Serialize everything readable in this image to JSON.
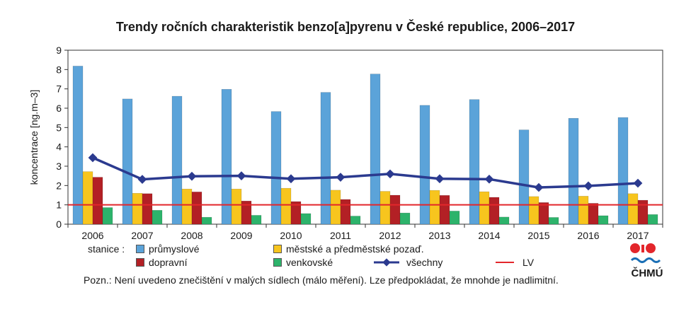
{
  "chart_data": {
    "type": "bar",
    "title": "Trendy ročních charakteristik benzo[a]pyrenu v České republice, 2006–2017",
    "ylabel": "koncentrace [ng.m–3]",
    "ylim": [
      0,
      9
    ],
    "yticks": [
      "0",
      "1",
      "2",
      "3",
      "4",
      "5",
      "6",
      "7",
      "8",
      "9"
    ],
    "categories": [
      "2006",
      "2007",
      "2008",
      "2009",
      "2010",
      "2011",
      "2012",
      "2013",
      "2014",
      "2015",
      "2016",
      "2017"
    ],
    "series": [
      {
        "name": "průmyslové",
        "color": "#5ba3d9",
        "values": [
          8.18,
          6.48,
          6.62,
          6.98,
          5.83,
          6.82,
          7.77,
          6.15,
          6.45,
          4.88,
          5.48,
          5.52
        ]
      },
      {
        "name": "městské a předměstské pozaď.",
        "color": "#f7c51e",
        "values": [
          2.72,
          1.6,
          1.82,
          1.82,
          1.86,
          1.76,
          1.7,
          1.75,
          1.68,
          1.43,
          1.45,
          1.58
        ]
      },
      {
        "name": "dopravní",
        "color": "#b32025",
        "values": [
          2.43,
          1.58,
          1.67,
          1.2,
          1.17,
          1.28,
          1.5,
          1.49,
          1.39,
          1.12,
          1.08,
          1.24
        ]
      },
      {
        "name": "venkovské",
        "color": "#2db36b",
        "values": [
          0.86,
          0.72,
          0.36,
          0.46,
          0.55,
          0.42,
          0.58,
          0.68,
          0.37,
          0.35,
          0.44,
          0.5
        ]
      }
    ],
    "line_series": {
      "name": "všechny",
      "color": "#2b3a8f",
      "values": [
        3.44,
        2.32,
        2.48,
        2.5,
        2.35,
        2.43,
        2.6,
        2.35,
        2.33,
        1.9,
        1.98,
        2.12
      ]
    },
    "limit": {
      "name": "LV",
      "value": 1,
      "color": "#e3262b"
    },
    "grid": false,
    "legend_placement": "bottom"
  },
  "legend": {
    "prefix": "stanice :",
    "items": [
      "průmyslové",
      "městské a předměstské pozaď.",
      "dopravní",
      "venkovské",
      "všechny",
      "LV"
    ]
  },
  "note": "Pozn.: Není uvedeno znečištění v malých sídlech (málo měření). Lze předpokládat, že mnohde je nadlimitní.",
  "logo": {
    "text": "ČHMÚ",
    "icon": "chmu-logo-icon",
    "colors": [
      "#e3262b",
      "#1a6fb5"
    ]
  }
}
